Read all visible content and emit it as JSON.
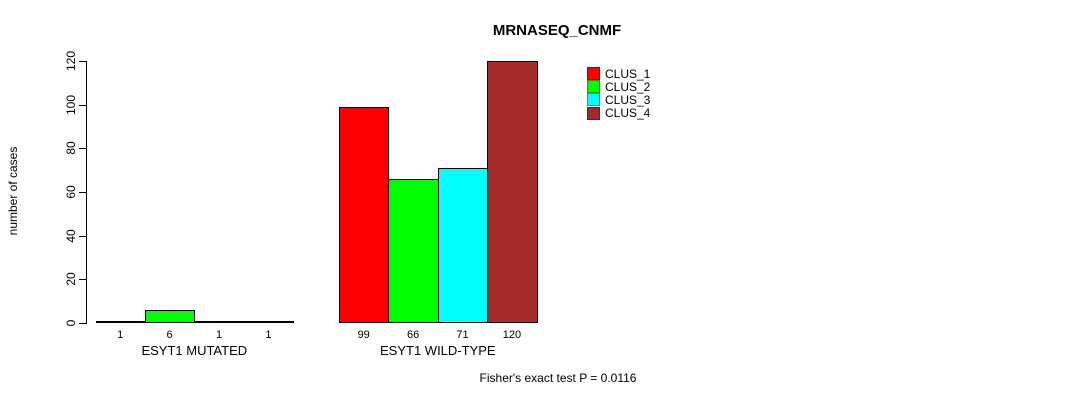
{
  "chart_data": {
    "type": "bar",
    "title": "MRNASEQ_CNMF",
    "ylabel": "number of cases",
    "xlabel": "",
    "ylim": [
      0,
      120
    ],
    "yticks": [
      0,
      20,
      40,
      60,
      80,
      100,
      120
    ],
    "grid": false,
    "legend_position": "top-right",
    "bar_border_color": "#000000",
    "groups": [
      {
        "label": "ESYT1 MUTATED",
        "values": [
          1,
          6,
          1,
          1
        ]
      },
      {
        "label": "ESYT1 WILD-TYPE",
        "values": [
          99,
          66,
          71,
          120
        ]
      }
    ],
    "series": [
      {
        "name": "CLUS_1",
        "color": "#ff0000"
      },
      {
        "name": "CLUS_2",
        "color": "#00ff00"
      },
      {
        "name": "CLUS_3",
        "color": "#00ffff"
      },
      {
        "name": "CLUS_4",
        "color": "#a52a2a"
      }
    ],
    "annotation": "Fisher's exact test P = 0.0116"
  }
}
